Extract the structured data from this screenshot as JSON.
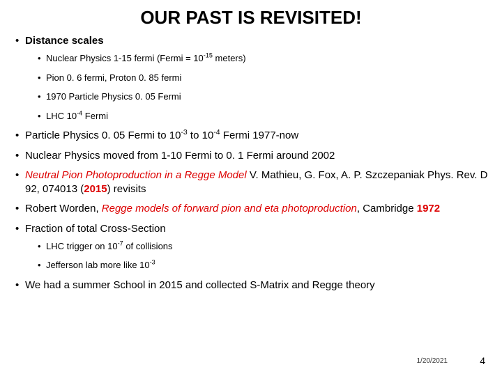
{
  "title": "OUR PAST IS REVISITED!",
  "bullets": {
    "b1": "Distance scales",
    "b1_sub": {
      "s1a": "Nuclear Physics 1-15 fermi (Fermi = 10",
      "s1b": "-15",
      "s1c": " meters)",
      "s2": "Pion 0. 6 fermi, Proton 0. 85 fermi",
      "s3": "1970 Particle Physics 0. 05 Fermi",
      "s4a": "LHC 10",
      "s4b": "-4",
      "s4c": " Fermi"
    },
    "b2a": "Particle Physics 0. 05 Fermi to 10",
    "b2b": "-3",
    "b2c": " to 10",
    "b2d": "-4",
    "b2e": " Fermi 1977-now",
    "b3": "Nuclear Physics moved from 1-10 Fermi to 0. 1 Fermi around 2002",
    "b4a": "Neutral Pion Photoproduction in a Regge Model",
    "b4b": " V. Mathieu, G. Fox, A. P. Szczepaniak Phys. Rev. D 92, 074013 (",
    "b4c": "2015",
    "b4d": ") revisits",
    "b5a": "Robert Worden, ",
    "b5b": "Regge models of forward pion and eta photoproduction",
    "b5c": ", Cambridge ",
    "b5d": "1972",
    "b6": "Fraction of total Cross-Section",
    "b6_sub": {
      "s1a": "LHC trigger on 10",
      "s1b": "-7",
      "s1c": "  of collisions",
      "s2a": "Jefferson lab more like 10",
      "s2b": "-3"
    },
    "b7": "We had a summer School in 2015 and collected S-Matrix and Regge theory"
  },
  "date": "1/20/2021",
  "pagenum": "4"
}
